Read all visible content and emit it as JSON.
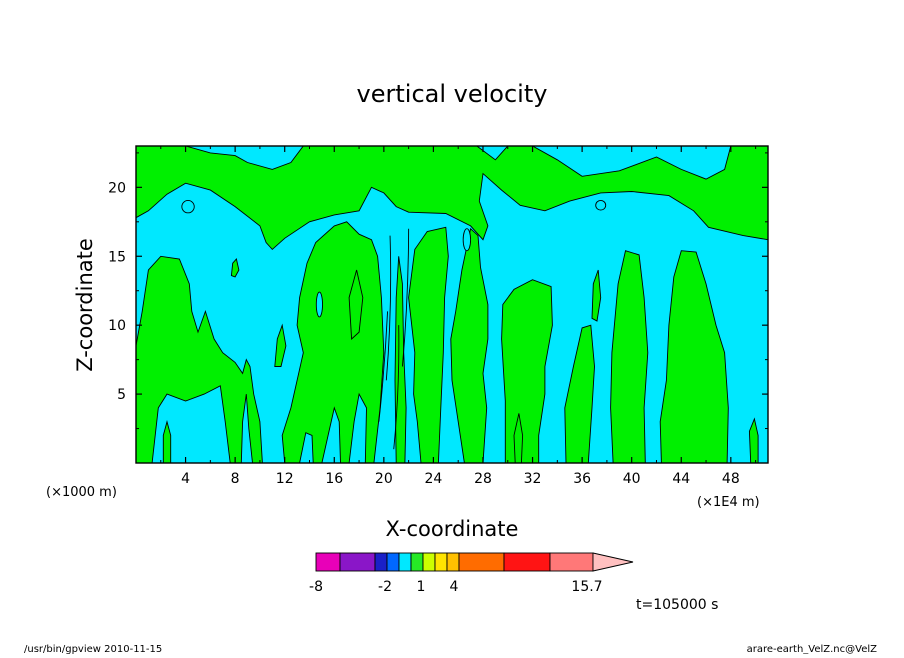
{
  "chart_data": {
    "type": "contour",
    "title": "vertical velocity",
    "xlabel": "X-coordinate",
    "ylabel": "Z-coordinate",
    "x_unit_note_left": "(×1000 m)",
    "x_unit_note_right": "(×1E4 m)",
    "xlim": [
      0,
      51
    ],
    "ylim": [
      0,
      23
    ],
    "x_ticks": [
      4,
      8,
      12,
      16,
      20,
      24,
      28,
      32,
      36,
      40,
      44,
      48
    ],
    "y_ticks": [
      5,
      10,
      15,
      20
    ],
    "grid": false,
    "colorbar": {
      "colors": [
        "#e800b8",
        "#8a16c8",
        "#1a20c8",
        "#0068ff",
        "#00e8ff",
        "#26ea26",
        "#ccff00",
        "#ffe400",
        "#ffc000",
        "#ff6c00",
        "#ff1414",
        "#ff7878"
      ],
      "tip_color": "#ffc0c0",
      "tick_labels": [
        "-8",
        "-2",
        "1",
        "4",
        "15.7"
      ]
    },
    "field_colors": {
      "negative": "#00e8ff",
      "positive": "#00f000"
    },
    "time_label": "t=105000 s"
  },
  "footer": {
    "left": "/usr/bin/gpview  2010-11-15",
    "right": "arare-earth_VelZ.nc@VelZ"
  }
}
